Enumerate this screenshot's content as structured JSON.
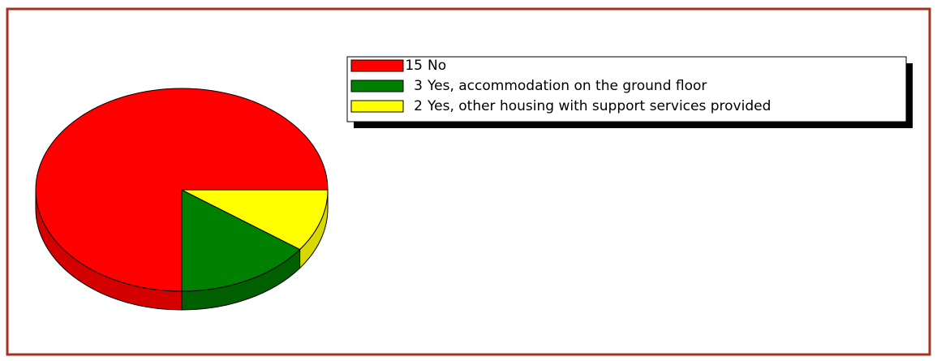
{
  "chart_data": {
    "type": "pie3d",
    "categories": [
      "No",
      "Yes, accommodation on the ground floor",
      "Yes, other housing with support services provided"
    ],
    "values": [
      15,
      3,
      2
    ],
    "colors": [
      "#ff0000",
      "#008000",
      "#ffff00"
    ],
    "side_colors": [
      "#d40000",
      "#006000",
      "#d8d800"
    ],
    "legend": "top-right"
  }
}
